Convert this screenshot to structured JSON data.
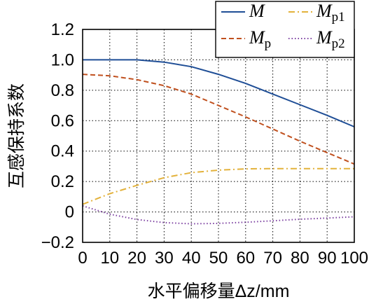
{
  "chart_data": {
    "type": "line",
    "xlabel": "水平偏移量Δz/mm",
    "ylabel": "互感保持系数",
    "xlim": [
      0,
      100
    ],
    "ylim": [
      -0.2,
      1.2
    ],
    "x_ticks": [
      "0",
      "10",
      "20",
      "30",
      "40",
      "50",
      "60",
      "70",
      "80",
      "90",
      "100"
    ],
    "y_ticks": [
      "−0.2",
      "0",
      "0.2",
      "0.4",
      "0.6",
      "0.8",
      "1.0",
      "1.2"
    ],
    "grid": true,
    "legend_position": "top-right",
    "x": [
      0,
      10,
      20,
      30,
      40,
      50,
      60,
      70,
      80,
      90,
      100
    ],
    "series": [
      {
        "name": "M",
        "symbol": "M",
        "subscript": "",
        "color": "#1f4e96",
        "dash": "solid",
        "values": [
          1.0,
          1.0,
          1.0,
          0.985,
          0.955,
          0.905,
          0.845,
          0.775,
          0.705,
          0.635,
          0.56
        ]
      },
      {
        "name": "Mp",
        "symbol": "M",
        "subscript": "p",
        "color": "#c0501e",
        "dash": "dash",
        "values": [
          0.905,
          0.895,
          0.87,
          0.83,
          0.775,
          0.7,
          0.625,
          0.545,
          0.465,
          0.39,
          0.315
        ]
      },
      {
        "name": "Mp1",
        "symbol": "M",
        "subscript": "p1",
        "color": "#e3b23c",
        "dash": "dashdot",
        "values": [
          0.05,
          0.12,
          0.175,
          0.225,
          0.258,
          0.275,
          0.283,
          0.285,
          0.285,
          0.285,
          0.285
        ]
      },
      {
        "name": "Mp2",
        "symbol": "M",
        "subscript": "p2",
        "color": "#7b3fa0",
        "dash": "dot",
        "values": [
          0.04,
          -0.015,
          -0.05,
          -0.07,
          -0.078,
          -0.075,
          -0.068,
          -0.058,
          -0.048,
          -0.04,
          -0.032
        ]
      }
    ]
  }
}
